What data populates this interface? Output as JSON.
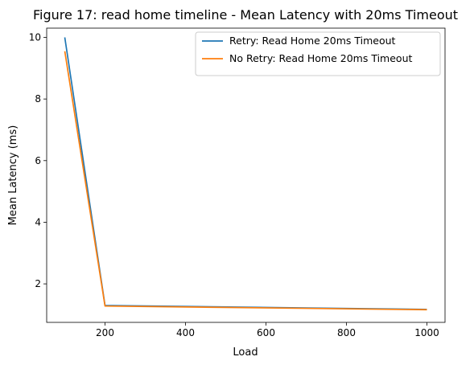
{
  "chart_data": {
    "type": "line",
    "title": "Figure 17: read home timeline - Mean Latency with 20ms Timeout",
    "xlabel": "Load",
    "ylabel": "Mean Latency (ms)",
    "xlim": [
      55,
      1045
    ],
    "ylim": [
      0.75,
      10.3
    ],
    "x_ticks": [
      200,
      400,
      600,
      800,
      1000
    ],
    "y_ticks": [
      2,
      4,
      6,
      8,
      10
    ],
    "grid": false,
    "legend_position": "upper right",
    "series": [
      {
        "name": "Retry: Read Home 20ms Timeout",
        "color": "#1f77b4",
        "x": [
          100,
          200,
          1000
        ],
        "y": [
          10.0,
          1.3,
          1.17
        ]
      },
      {
        "name": "No Retry: Read Home 20ms Timeout",
        "color": "#ff7f0e",
        "x": [
          100,
          200,
          1000
        ],
        "y": [
          9.55,
          1.28,
          1.16
        ]
      }
    ]
  }
}
